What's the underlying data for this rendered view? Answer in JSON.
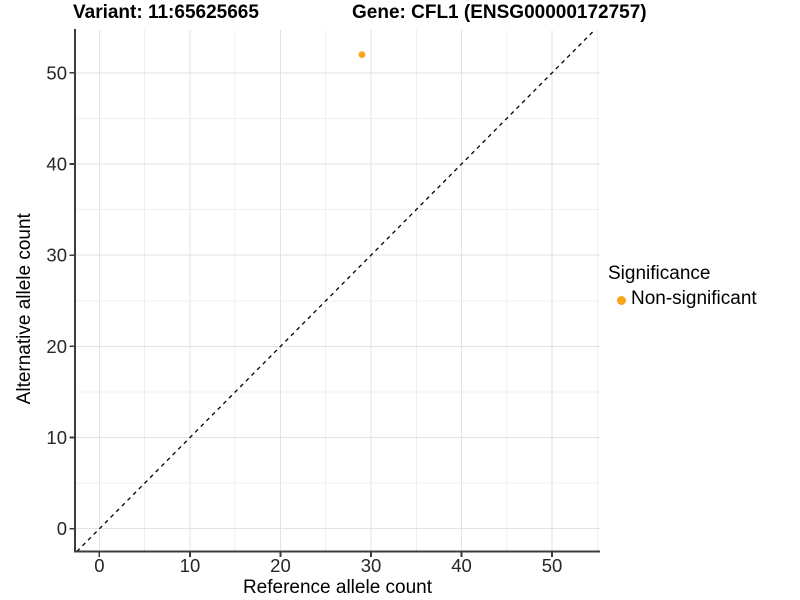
{
  "chart_data": {
    "type": "scatter",
    "title_left": "Variant: 11:65625665",
    "title_right": "Gene: CFL1 (ENSG00000172757)",
    "xlabel": "Reference allele count",
    "ylabel": "Alternative allele count",
    "x_ticks": [
      0,
      10,
      20,
      30,
      40,
      50
    ],
    "y_ticks": [
      0,
      10,
      20,
      30,
      40,
      50
    ],
    "x_minor": [
      5,
      15,
      25,
      35,
      45,
      55
    ],
    "y_minor": [
      5,
      15,
      25,
      35,
      45
    ],
    "xlim": [
      -2.7,
      55.3
    ],
    "ylim": [
      -2.5,
      54.7
    ],
    "grid": true,
    "identity_line": {
      "slope": 1,
      "intercept": 0,
      "style": "dashed",
      "color": "#000000"
    },
    "series": [
      {
        "name": "Non-significant",
        "color": "#FAA41E",
        "points": [
          {
            "x": 29,
            "y": 52
          }
        ]
      }
    ],
    "legend": {
      "position": "right",
      "title": "Significance",
      "entries": [
        {
          "label": "Non-significant",
          "color": "#FAA41E"
        }
      ]
    },
    "colors": {
      "point": "#FAA41E",
      "grid_major": "#E3E3E3",
      "grid_minor": "#EFEFEF",
      "axis_line": "#3C3C3C",
      "tick_text": "#262626",
      "title_text": "#000000"
    }
  }
}
